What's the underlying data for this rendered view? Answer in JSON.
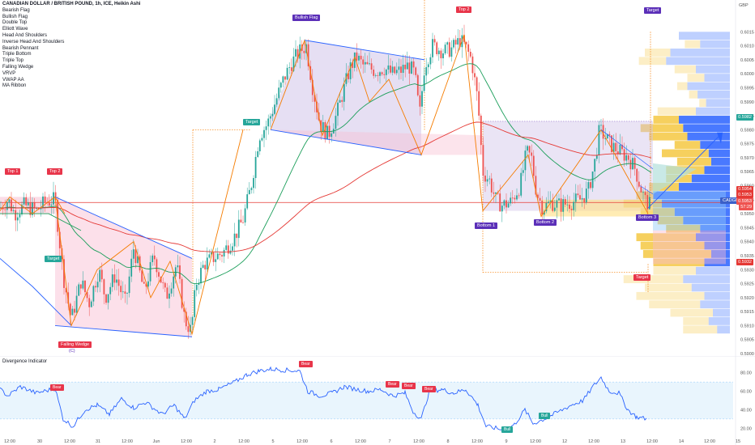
{
  "legend": {
    "title": "CANADIAN DOLLAR / BRITISH POUND, 1h, ICE, Heikin Ashi",
    "items": [
      "Bearish Flag",
      "Bullish Flag",
      "Double Top",
      "Elliott Wave",
      "Head And Shoulders",
      "Inverse Head And Shoulders",
      "Bearish Pennant",
      "Triple Bottom",
      "Triple Top",
      "Falling Wedge",
      "VRVP",
      "VWAP AA",
      "MA Ribbon"
    ]
  },
  "currency_label": "GBP",
  "oscillator_title": "Divergence Indicator",
  "pattern_tags": {
    "top1": "Top 1",
    "top2_left": "Top 2",
    "target_left": "Target",
    "falling_wedge": "Falling Wedge",
    "c_mark": "(C)",
    "target_mid": "Target",
    "bullish_flag": "Bullish Flag",
    "top2_mid": "Top 2",
    "target_top": "Target",
    "bottom1": "Bottom 1",
    "bottom2": "Bottom 2",
    "bottom3": "Bottom 3",
    "target_bottom": "Target",
    "symbol": "CADGBP"
  },
  "price_labels": {
    "p5982": "0.5982",
    "p5954": "0.5954",
    "p5953": "0.5953",
    "p5953b": "0.5953",
    "timer": "57:29",
    "p5932": "0.5932"
  },
  "osc_tags": {
    "bear1": "Bear",
    "bear2": "Bear",
    "bear3": "Bear",
    "bear4": "Bear",
    "bear5": "Bear",
    "bull1": "Bull",
    "bull2": "Bull"
  },
  "colors": {
    "up_candle": "#26a69a",
    "down_candle": "#ef5350",
    "pattern_orange": "#f57c00",
    "pattern_blue": "#2962ff",
    "ma_green": "#1b9e5a",
    "vwap_red": "#e53935",
    "osc_line": "#2962ff",
    "vrvp_blue": "#2962ff",
    "vrvp_yellow": "#f5c842"
  },
  "chart_data": {
    "type": "candlestick",
    "title": "CANADIAN DOLLAR / BRITISH POUND, 1h, ICE, Heikin Ashi",
    "y_axis": {
      "range": [
        0.59,
        0.602
      ],
      "ticks": [
        "0.6015",
        "0.6010",
        "0.6005",
        "0.6000",
        "0.5995",
        "0.5990",
        "0.5985",
        "0.5980",
        "0.5975",
        "0.5970",
        "0.5965",
        "0.5960",
        "0.5955",
        "0.5950",
        "0.5945",
        "0.5940",
        "0.5935",
        "0.5930",
        "0.5925",
        "0.5920",
        "0.5915",
        "0.5910",
        "0.5905",
        "0.5900"
      ]
    },
    "x_axis": {
      "ticks": [
        "12:00",
        "30",
        "12:00",
        "31",
        "12:00",
        "Jun",
        "12:00",
        "2",
        "12:00",
        "5",
        "12:00",
        "6",
        "12:00",
        "7",
        "12:00",
        "8",
        "12:00",
        "9",
        "12:00",
        "12",
        "12:00",
        "13",
        "12:00",
        "14",
        "12:00",
        "15"
      ]
    },
    "key_points": [
      {
        "label": "Top 1",
        "price": 0.5956
      },
      {
        "label": "Top 2",
        "price": 0.5956
      },
      {
        "label": "Falling Wedge low",
        "price": 0.5908
      },
      {
        "label": "Bullish Flag high",
        "price": 0.6012
      },
      {
        "label": "Top 2 (mid)",
        "price": 0.6014
      },
      {
        "label": "Bottom 1",
        "price": 0.5951
      },
      {
        "label": "Bottom 2",
        "price": 0.5951
      },
      {
        "label": "Bottom 3",
        "price": 0.595
      },
      {
        "label": "Last",
        "price": 0.5953
      }
    ],
    "oscillator": {
      "name": "Divergence Indicator",
      "y_ticks": [
        "80.00",
        "60.00",
        "40.00",
        "20.00"
      ],
      "band": [
        30,
        70
      ]
    }
  }
}
